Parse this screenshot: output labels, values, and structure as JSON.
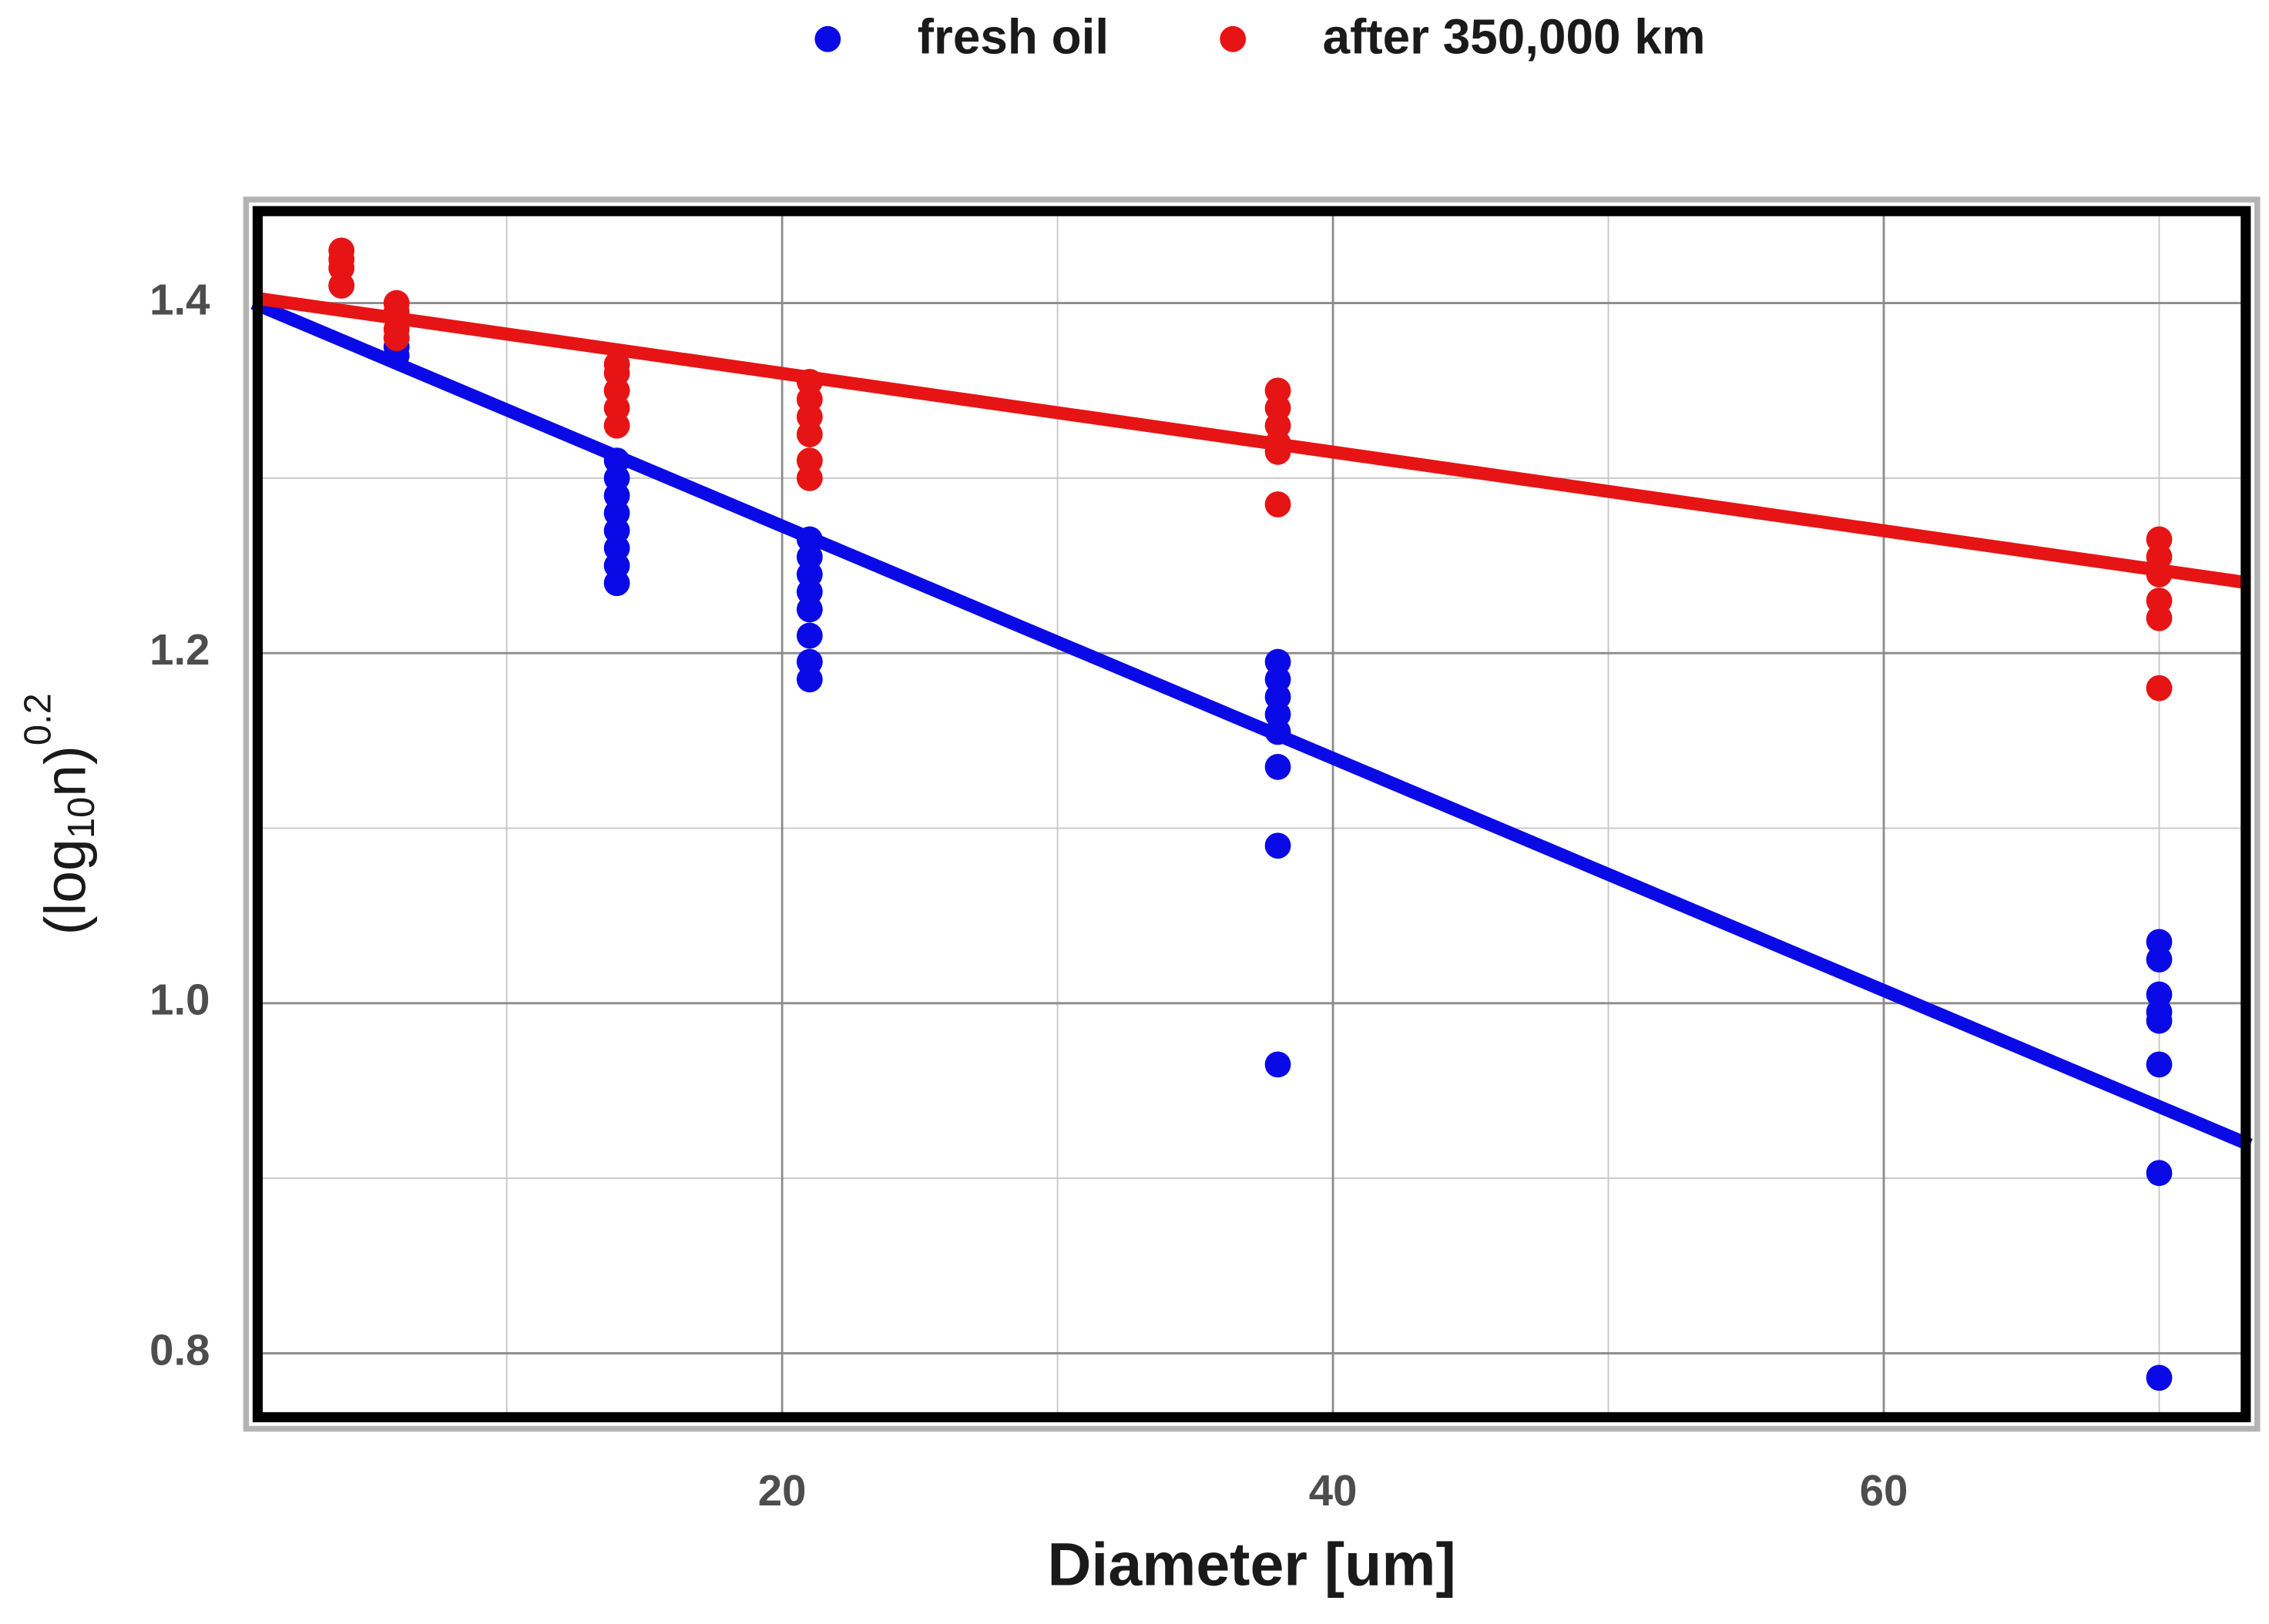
{
  "chart_data": {
    "type": "scatter",
    "x_label": "Diameter [um]",
    "y_label": {
      "pre": "(log",
      "sub": "10",
      "post": "n)",
      "sup": "0.2"
    },
    "xlim": [
      0.8,
      73.3
    ],
    "ylim": [
      0.761,
      1.455
    ],
    "xticks": [
      20,
      40,
      60
    ],
    "yticks": [
      0.8,
      1.0,
      1.2,
      1.4
    ],
    "yticks_labels": [
      "0.8",
      "1.0",
      "1.2",
      "1.4"
    ],
    "x_minor_grid": [
      10,
      30,
      50,
      70
    ],
    "y_minor_grid": [
      0.9,
      1.1,
      1.3
    ],
    "grid": true,
    "legend": "top",
    "series": [
      {
        "name": "fresh oil",
        "color": "#0a0ae6",
        "x": [
          4,
          6,
          6,
          14,
          14,
          14,
          14,
          14,
          14,
          14,
          14,
          21,
          21,
          21,
          21,
          21,
          21,
          21,
          21,
          38,
          38,
          38,
          38,
          38,
          38,
          38,
          38,
          70,
          70,
          70,
          70,
          70,
          70,
          70,
          70
        ],
        "values": [
          1.41,
          1.375,
          1.37,
          1.31,
          1.3,
          1.29,
          1.28,
          1.27,
          1.26,
          1.25,
          1.24,
          1.265,
          1.255,
          1.245,
          1.235,
          1.225,
          1.21,
          1.195,
          1.185,
          1.195,
          1.185,
          1.175,
          1.165,
          1.155,
          1.135,
          1.09,
          0.965,
          1.035,
          1.025,
          1.005,
          0.995,
          0.99,
          0.965,
          0.903,
          0.786
        ],
        "trend": {
          "x": [
            0.8,
            73.3
          ],
          "values": [
            1.4,
            0.919
          ]
        }
      },
      {
        "name": "after 350,000 km",
        "color": "#e61414",
        "x": [
          4,
          4,
          4,
          4,
          6,
          6,
          6,
          6,
          14,
          14,
          14,
          14,
          14,
          21,
          21,
          21,
          21,
          21,
          21,
          38,
          38,
          38,
          38,
          38,
          38,
          70,
          70,
          70,
          70,
          70,
          70
        ],
        "values": [
          1.43,
          1.425,
          1.42,
          1.41,
          1.4,
          1.395,
          1.385,
          1.38,
          1.365,
          1.36,
          1.35,
          1.34,
          1.33,
          1.355,
          1.345,
          1.335,
          1.325,
          1.31,
          1.3,
          1.35,
          1.34,
          1.33,
          1.32,
          1.315,
          1.285,
          1.265,
          1.255,
          1.245,
          1.23,
          1.22,
          1.18
        ],
        "trend": {
          "x": [
            0.8,
            73.3
          ],
          "values": [
            1.403,
            1.24
          ]
        }
      }
    ]
  }
}
